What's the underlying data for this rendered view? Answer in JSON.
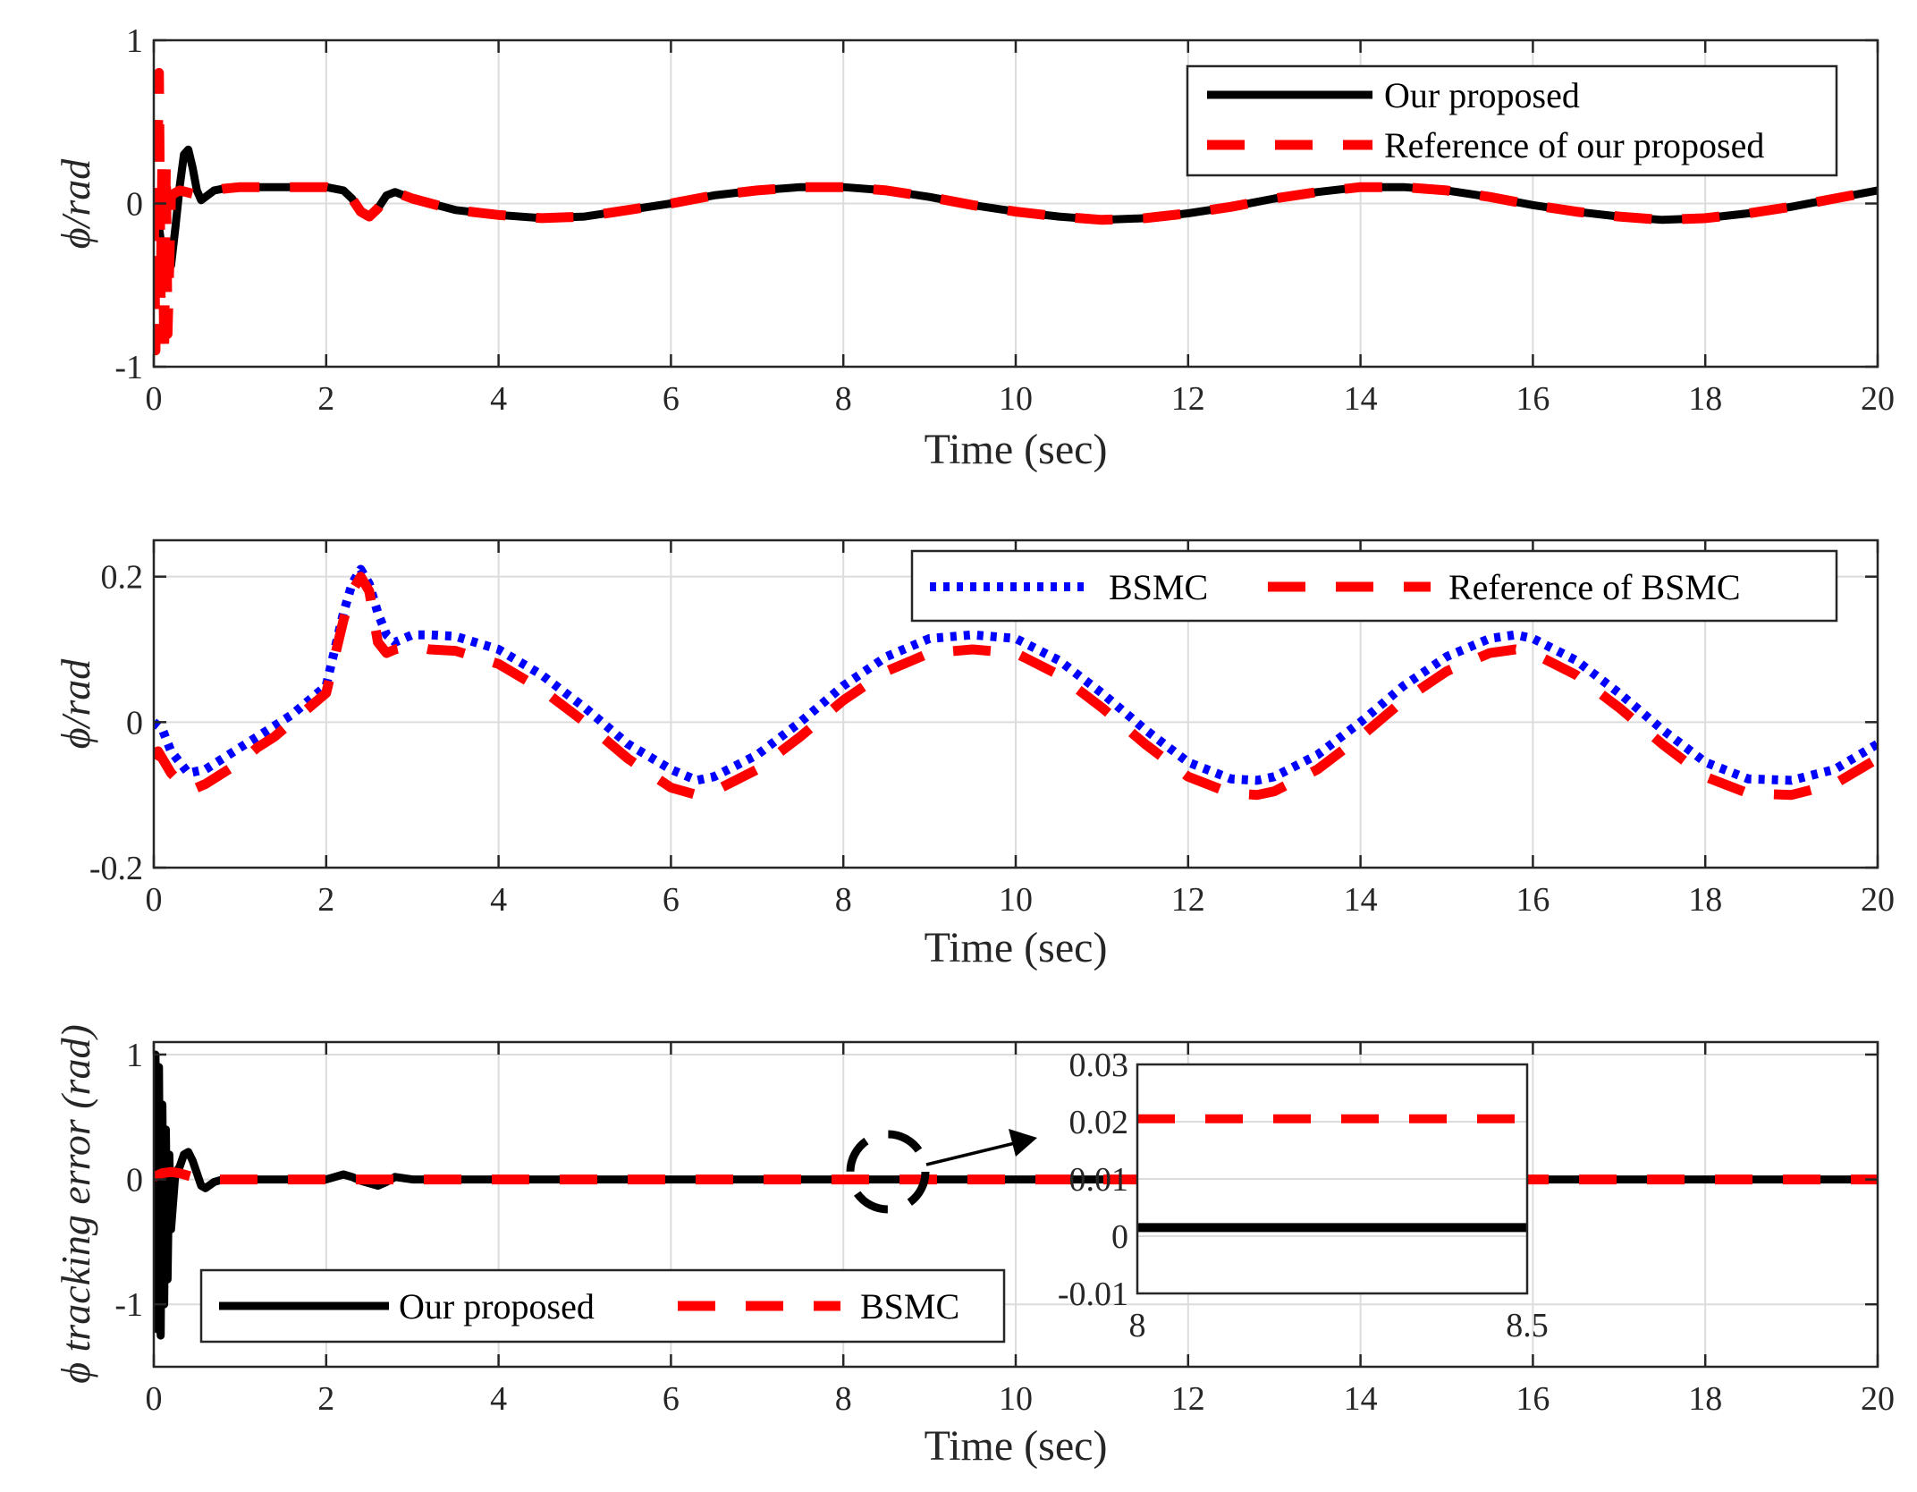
{
  "chart_data": [
    {
      "type": "line",
      "xlabel": "Time (sec)",
      "ylabel": "ϕ/rad",
      "xlim": [
        0,
        20
      ],
      "ylim": [
        -1,
        1
      ],
      "xticks": [
        "0",
        "2",
        "4",
        "6",
        "8",
        "10",
        "12",
        "14",
        "16",
        "18",
        "20"
      ],
      "yticks": [
        "-1",
        "0",
        "1"
      ],
      "series": [
        {
          "name": "Our proposed",
          "color": "#000000",
          "style": "solid",
          "x": [
            0,
            0.05,
            0.1,
            0.15,
            0.2,
            0.25,
            0.3,
            0.35,
            0.4,
            0.45,
            0.5,
            0.55,
            0.6,
            0.7,
            0.8,
            1.0,
            1.2,
            1.4,
            1.6,
            1.8,
            2.0,
            2.2,
            2.3,
            2.4,
            2.5,
            2.6,
            2.7,
            2.8,
            2.9,
            3.0,
            3.5,
            4.0,
            4.5,
            5.0,
            5.5,
            6.0,
            6.5,
            7.0,
            7.5,
            8.0,
            8.5,
            9.0,
            9.5,
            10.0,
            10.5,
            11.0,
            11.5,
            12.0,
            12.5,
            13.0,
            13.5,
            14.0,
            14.5,
            15.0,
            15.5,
            16.0,
            16.5,
            17.0,
            17.5,
            18.0,
            18.5,
            19.0,
            19.5,
            20.0
          ],
          "y": [
            0,
            -0.1,
            -0.3,
            -0.4,
            -0.38,
            -0.15,
            0.1,
            0.3,
            0.33,
            0.22,
            0.08,
            0.02,
            0.04,
            0.08,
            0.09,
            0.1,
            0.1,
            0.1,
            0.1,
            0.1,
            0.1,
            0.08,
            0.03,
            -0.05,
            -0.08,
            -0.03,
            0.05,
            0.07,
            0.05,
            0.03,
            -0.04,
            -0.07,
            -0.09,
            -0.08,
            -0.04,
            0.0,
            0.05,
            0.08,
            0.1,
            0.1,
            0.08,
            0.04,
            -0.01,
            -0.05,
            -0.08,
            -0.1,
            -0.09,
            -0.06,
            -0.02,
            0.03,
            0.07,
            0.1,
            0.1,
            0.08,
            0.04,
            -0.01,
            -0.05,
            -0.08,
            -0.1,
            -0.09,
            -0.06,
            -0.02,
            0.03,
            0.08
          ]
        },
        {
          "name": "Reference of our proposed",
          "color": "#ff0000",
          "style": "dashed",
          "x": [
            0,
            0.02,
            0.04,
            0.06,
            0.08,
            0.1,
            0.12,
            0.14,
            0.16,
            0.2,
            0.3,
            0.45,
            0.6,
            0.7,
            0.8,
            1.0,
            1.2,
            1.4,
            1.6,
            1.8,
            2.0,
            2.2,
            2.3,
            2.4,
            2.5,
            2.6,
            2.7,
            2.8,
            2.9,
            3.0,
            3.5,
            4.0,
            4.5,
            5.0,
            5.5,
            6.0,
            6.5,
            7.0,
            7.5,
            8.0,
            8.5,
            9.0,
            9.5,
            10.0,
            10.5,
            11.0,
            11.5,
            12.0,
            12.5,
            13.0,
            13.5,
            14.0,
            14.5,
            15.0,
            15.5,
            16.0,
            16.5,
            17.0,
            17.5,
            18.0,
            18.5,
            19.0,
            19.5,
            20.0
          ],
          "y": [
            0,
            -0.9,
            0.2,
            0.8,
            -0.6,
            0.3,
            -0.95,
            0.25,
            -0.8,
            0.05,
            0.08,
            0.06,
            0.06,
            0.08,
            0.09,
            0.1,
            0.1,
            0.1,
            0.1,
            0.1,
            0.1,
            0.08,
            0.03,
            -0.05,
            -0.08,
            -0.03,
            0.05,
            0.07,
            0.05,
            0.03,
            -0.04,
            -0.07,
            -0.09,
            -0.08,
            -0.04,
            0.0,
            0.05,
            0.08,
            0.1,
            0.1,
            0.08,
            0.04,
            -0.01,
            -0.05,
            -0.08,
            -0.1,
            -0.09,
            -0.06,
            -0.02,
            0.03,
            0.07,
            0.1,
            0.1,
            0.08,
            0.04,
            -0.01,
            -0.05,
            -0.08,
            -0.1,
            -0.09,
            -0.06,
            -0.02,
            0.03,
            0.08
          ]
        }
      ],
      "legend": "top-right"
    },
    {
      "type": "line",
      "xlabel": "Time (sec)",
      "ylabel": "ϕ/rad",
      "xlim": [
        0,
        20
      ],
      "ylim": [
        -0.2,
        0.25
      ],
      "xticks": [
        "0",
        "2",
        "4",
        "6",
        "8",
        "10",
        "12",
        "14",
        "16",
        "18",
        "20"
      ],
      "yticks": [
        "-0.2",
        "0",
        "0.2"
      ],
      "series": [
        {
          "name": "BSMC",
          "color": "#0000ff",
          "style": "dotted",
          "x": [
            0,
            0.1,
            0.2,
            0.4,
            0.6,
            0.8,
            1.0,
            1.2,
            1.4,
            1.6,
            1.8,
            2.0,
            2.1,
            2.2,
            2.3,
            2.4,
            2.5,
            2.6,
            2.7,
            2.8,
            3.0,
            3.2,
            3.5,
            4.0,
            4.5,
            5.0,
            5.5,
            6.0,
            6.3,
            6.5,
            7.0,
            7.5,
            8.0,
            8.5,
            9.0,
            9.5,
            10.0,
            10.5,
            11.0,
            11.5,
            12.0,
            12.5,
            12.8,
            13.0,
            13.5,
            14.0,
            14.5,
            15.0,
            15.5,
            15.8,
            16.0,
            16.5,
            17.0,
            17.5,
            18.0,
            18.5,
            19.0,
            19.5,
            20.0
          ],
          "y": [
            0,
            -0.01,
            -0.04,
            -0.07,
            -0.065,
            -0.05,
            -0.035,
            -0.02,
            -0.005,
            0.01,
            0.03,
            0.05,
            0.1,
            0.15,
            0.19,
            0.21,
            0.19,
            0.15,
            0.12,
            0.11,
            0.12,
            0.12,
            0.118,
            0.1,
            0.065,
            0.02,
            -0.03,
            -0.065,
            -0.08,
            -0.075,
            -0.045,
            0.0,
            0.05,
            0.09,
            0.115,
            0.12,
            0.115,
            0.085,
            0.04,
            -0.01,
            -0.055,
            -0.078,
            -0.08,
            -0.075,
            -0.045,
            0.0,
            0.05,
            0.09,
            0.115,
            0.12,
            0.115,
            0.085,
            0.04,
            -0.01,
            -0.055,
            -0.078,
            -0.08,
            -0.065,
            -0.03
          ]
        },
        {
          "name": "Reference of BSMC",
          "color": "#ff0000",
          "style": "dashed",
          "x": [
            0,
            0.05,
            0.2,
            0.4,
            0.6,
            0.8,
            1.0,
            1.2,
            1.4,
            1.6,
            1.8,
            2.0,
            2.1,
            2.2,
            2.3,
            2.4,
            2.5,
            2.6,
            2.7,
            2.8,
            3.0,
            3.2,
            3.5,
            4.0,
            4.5,
            5.0,
            5.5,
            6.0,
            6.3,
            6.5,
            7.0,
            7.5,
            8.0,
            8.5,
            9.0,
            9.5,
            10.0,
            10.5,
            11.0,
            11.5,
            12.0,
            12.5,
            12.8,
            13.0,
            13.5,
            14.0,
            14.5,
            15.0,
            15.5,
            15.8,
            16.0,
            16.5,
            17.0,
            17.5,
            18.0,
            18.5,
            19.0,
            19.5,
            20.0
          ],
          "y": [
            -0.05,
            -0.04,
            -0.07,
            -0.095,
            -0.085,
            -0.07,
            -0.055,
            -0.035,
            -0.02,
            0.0,
            0.02,
            0.04,
            0.09,
            0.14,
            0.18,
            0.2,
            0.18,
            0.11,
            0.095,
            0.1,
            0.105,
            0.1,
            0.098,
            0.08,
            0.045,
            0.0,
            -0.05,
            -0.09,
            -0.1,
            -0.095,
            -0.065,
            -0.02,
            0.03,
            0.07,
            0.095,
            0.1,
            0.095,
            0.065,
            0.02,
            -0.03,
            -0.075,
            -0.098,
            -0.1,
            -0.095,
            -0.065,
            -0.02,
            0.03,
            0.07,
            0.095,
            0.1,
            0.095,
            0.065,
            0.02,
            -0.03,
            -0.075,
            -0.098,
            -0.1,
            -0.085,
            -0.05
          ]
        }
      ],
      "legend": "top-right"
    },
    {
      "type": "line",
      "xlabel": "Time (sec)",
      "ylabel": "ϕ tracking error (rad)",
      "xlim": [
        0,
        20
      ],
      "ylim": [
        -1.5,
        1.1
      ],
      "xticks": [
        "0",
        "2",
        "4",
        "6",
        "8",
        "10",
        "12",
        "14",
        "16",
        "18",
        "20"
      ],
      "yticks": [
        "-1",
        "0",
        "1"
      ],
      "series": [
        {
          "name": "Our proposed",
          "color": "#000000",
          "style": "solid",
          "x": [
            0,
            0.02,
            0.04,
            0.06,
            0.08,
            0.1,
            0.12,
            0.14,
            0.16,
            0.18,
            0.2,
            0.25,
            0.3,
            0.35,
            0.4,
            0.45,
            0.5,
            0.55,
            0.6,
            0.7,
            0.8,
            1.0,
            2.0,
            2.1,
            2.2,
            2.3,
            2.4,
            2.5,
            2.6,
            2.7,
            2.8,
            2.9,
            3.0,
            20.0
          ],
          "y": [
            0,
            1.0,
            -1.2,
            0.9,
            -1.25,
            0.6,
            -1.0,
            0.4,
            -0.8,
            0.2,
            -0.4,
            0.05,
            0.1,
            0.2,
            0.22,
            0.15,
            0.05,
            -0.05,
            -0.07,
            -0.02,
            0.0,
            0.0,
            0.0,
            0.02,
            0.04,
            0.02,
            -0.01,
            -0.03,
            -0.05,
            -0.02,
            0.02,
            0.01,
            0.0,
            0.0
          ]
        },
        {
          "name": "BSMC",
          "color": "#ff0000",
          "style": "dashed",
          "x": [
            0,
            0.1,
            0.2,
            0.3,
            0.4,
            0.5,
            0.6,
            0.8,
            1.0,
            20.0
          ],
          "y": [
            0.02,
            0.05,
            0.06,
            0.05,
            0.03,
            0.01,
            0.0,
            0.0,
            0.0,
            0.0
          ]
        }
      ],
      "legend": "bottom-left",
      "inset": {
        "xlim": [
          8,
          8.5
        ],
        "ylim": [
          -0.01,
          0.03
        ],
        "xticks": [
          "8",
          "8.5"
        ],
        "yticks": [
          "0.03",
          "0.02",
          "0.01",
          "0",
          "-0.01"
        ],
        "series": [
          {
            "name": "Our proposed",
            "color": "#000000",
            "y": 0.0015
          },
          {
            "name": "BSMC",
            "color": "#ff0000",
            "y": 0.0205
          }
        ]
      }
    }
  ],
  "colors": {
    "black": "#000000",
    "red": "#ff0000",
    "blue": "#0000ff",
    "axis": "#262626",
    "grid": "#dcdcdc"
  }
}
